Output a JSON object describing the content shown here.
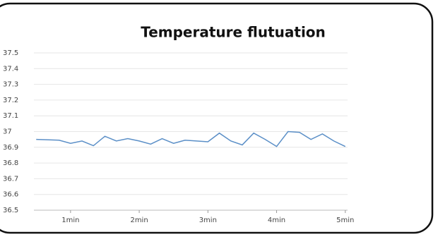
{
  "chart_data": {
    "type": "line",
    "title": "Temperature flutuation",
    "x": [
      30,
      50,
      60,
      70,
      80,
      90,
      100,
      110,
      120,
      130,
      140,
      150,
      160,
      170,
      180,
      190,
      200,
      210,
      220,
      230,
      240,
      250,
      260,
      270,
      280,
      290,
      300
    ],
    "series": [
      {
        "name": "Temperature",
        "color": "#5b8fc7",
        "values": [
          36.95,
          36.945,
          36.925,
          36.94,
          36.91,
          36.97,
          36.94,
          36.955,
          36.94,
          36.92,
          36.955,
          36.925,
          36.945,
          36.94,
          36.935,
          36.99,
          36.94,
          36.915,
          36.99,
          36.95,
          36.905,
          37.0,
          36.995,
          36.95,
          36.985,
          36.94,
          36.905
        ]
      }
    ],
    "xlim": [
      28,
      302
    ],
    "xticks": [
      {
        "value": 60,
        "label": "1min"
      },
      {
        "value": 120,
        "label": "2min"
      },
      {
        "value": 180,
        "label": "3min"
      },
      {
        "value": 240,
        "label": "4min"
      },
      {
        "value": 300,
        "label": "5min"
      }
    ],
    "ylim": [
      36.5,
      37.5
    ],
    "yticks": [
      36.5,
      36.6,
      36.7,
      36.8,
      36.9,
      37,
      37.1,
      37.2,
      37.3,
      37.4,
      37.5
    ],
    "grid": true
  }
}
